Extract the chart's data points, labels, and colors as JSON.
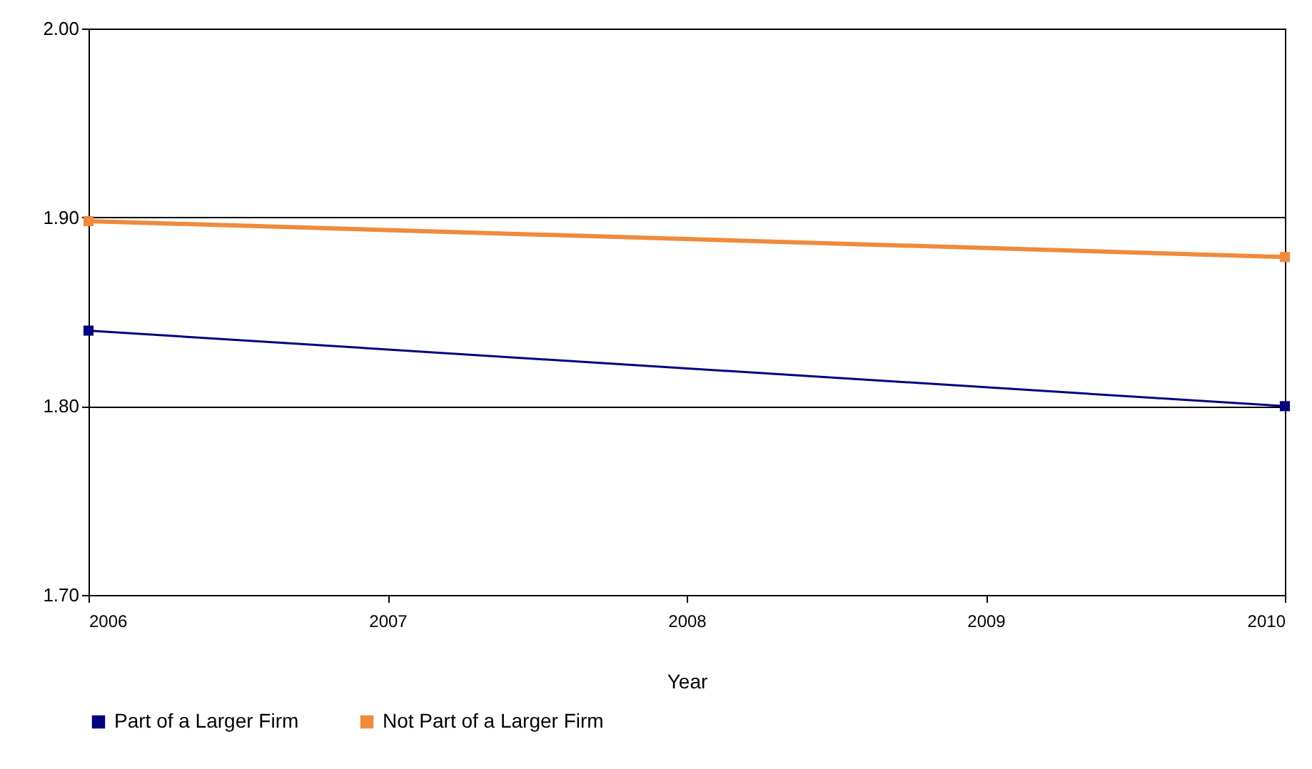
{
  "chart_data": {
    "type": "line",
    "xlabel": "Year",
    "x": [
      2006,
      2010
    ],
    "xlim": [
      2006,
      2010
    ],
    "xticks": [
      2006,
      2007,
      2008,
      2009,
      2010
    ],
    "ylim": [
      1.7,
      2.0
    ],
    "yticks": [
      {
        "value": 1.7,
        "label": "1.70"
      },
      {
        "value": 1.8,
        "label": "1.80"
      },
      {
        "value": 1.9,
        "label": "1.90"
      },
      {
        "value": 2.0,
        "label": "2.00"
      }
    ],
    "series": [
      {
        "name": "Part of a Larger Firm",
        "color": "#000080",
        "values": [
          1.84,
          1.8
        ]
      },
      {
        "name": "Not Part of a Larger Firm",
        "color": "#f08a3c",
        "values": [
          1.898,
          1.879
        ]
      }
    ],
    "grid": "y",
    "legend": "bottom",
    "marker": "square",
    "line_style": "solid"
  }
}
